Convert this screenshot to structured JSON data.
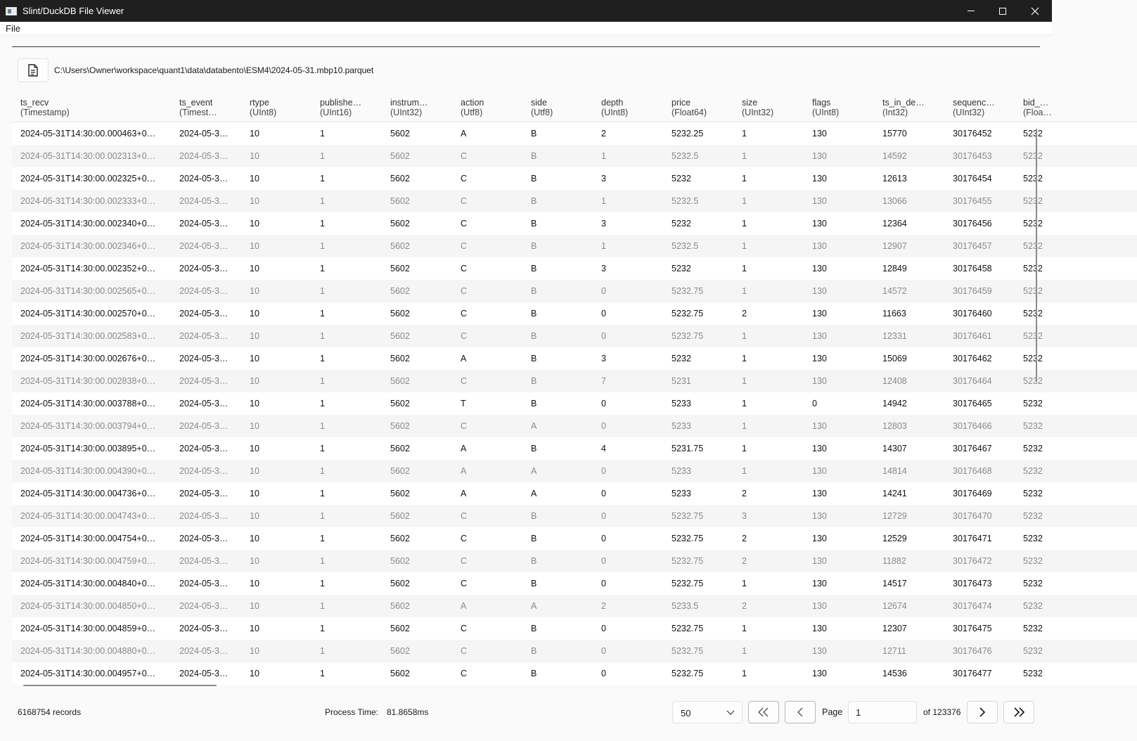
{
  "window": {
    "title": "Slint/DuckDB File Viewer"
  },
  "menu": {
    "file": "File"
  },
  "file": {
    "path": "C:\\Users\\Owner\\workspace\\quant1\\data\\databento\\ESM4\\2024-05-31.mbp10.parquet"
  },
  "table": {
    "columns": [
      {
        "name": "ts_recv",
        "type": "(Timestamp)"
      },
      {
        "name": "ts_event",
        "type": "(Timest…"
      },
      {
        "name": "rtype",
        "type": "(UInt8)"
      },
      {
        "name": "publishe…",
        "type": "(UInt16)"
      },
      {
        "name": "instrum…",
        "type": "(UInt32)"
      },
      {
        "name": "action",
        "type": "(Utf8)"
      },
      {
        "name": "side",
        "type": "(Utf8)"
      },
      {
        "name": "depth",
        "type": "(UInt8)"
      },
      {
        "name": "price",
        "type": "(Float64)"
      },
      {
        "name": "size",
        "type": "(UInt32)"
      },
      {
        "name": "flags",
        "type": "(UInt8)"
      },
      {
        "name": "ts_in_de…",
        "type": "(Int32)"
      },
      {
        "name": "sequenc…",
        "type": "(UInt32)"
      },
      {
        "name": "bid_…",
        "type": "(Floa…"
      }
    ],
    "rows": [
      [
        "2024-05-31T14:30:00.000463+0…",
        "2024-05-3…",
        "10",
        "1",
        "5602",
        "A",
        "B",
        "2",
        "5232.25",
        "1",
        "130",
        "15770",
        "30176452",
        "5232"
      ],
      [
        "2024-05-31T14:30:00.002313+0…",
        "2024-05-3…",
        "10",
        "1",
        "5602",
        "C",
        "B",
        "1",
        "5232.5",
        "1",
        "130",
        "14592",
        "30176453",
        "5232"
      ],
      [
        "2024-05-31T14:30:00.002325+0…",
        "2024-05-3…",
        "10",
        "1",
        "5602",
        "C",
        "B",
        "3",
        "5232",
        "1",
        "130",
        "12613",
        "30176454",
        "5232"
      ],
      [
        "2024-05-31T14:30:00.002333+0…",
        "2024-05-3…",
        "10",
        "1",
        "5602",
        "C",
        "B",
        "1",
        "5232.5",
        "1",
        "130",
        "13066",
        "30176455",
        "5232"
      ],
      [
        "2024-05-31T14:30:00.002340+0…",
        "2024-05-3…",
        "10",
        "1",
        "5602",
        "C",
        "B",
        "3",
        "5232",
        "1",
        "130",
        "12364",
        "30176456",
        "5232"
      ],
      [
        "2024-05-31T14:30:00.002346+0…",
        "2024-05-3…",
        "10",
        "1",
        "5602",
        "C",
        "B",
        "1",
        "5232.5",
        "1",
        "130",
        "12907",
        "30176457",
        "5232"
      ],
      [
        "2024-05-31T14:30:00.002352+0…",
        "2024-05-3…",
        "10",
        "1",
        "5602",
        "C",
        "B",
        "3",
        "5232",
        "1",
        "130",
        "12849",
        "30176458",
        "5232"
      ],
      [
        "2024-05-31T14:30:00.002565+0…",
        "2024-05-3…",
        "10",
        "1",
        "5602",
        "C",
        "B",
        "0",
        "5232.75",
        "1",
        "130",
        "14572",
        "30176459",
        "5232"
      ],
      [
        "2024-05-31T14:30:00.002570+0…",
        "2024-05-3…",
        "10",
        "1",
        "5602",
        "C",
        "B",
        "0",
        "5232.75",
        "2",
        "130",
        "11663",
        "30176460",
        "5232"
      ],
      [
        "2024-05-31T14:30:00.002583+0…",
        "2024-05-3…",
        "10",
        "1",
        "5602",
        "C",
        "B",
        "0",
        "5232.75",
        "1",
        "130",
        "12331",
        "30176461",
        "5232"
      ],
      [
        "2024-05-31T14:30:00.002676+0…",
        "2024-05-3…",
        "10",
        "1",
        "5602",
        "A",
        "B",
        "3",
        "5232",
        "1",
        "130",
        "15069",
        "30176462",
        "5232"
      ],
      [
        "2024-05-31T14:30:00.002838+0…",
        "2024-05-3…",
        "10",
        "1",
        "5602",
        "C",
        "B",
        "7",
        "5231",
        "1",
        "130",
        "12408",
        "30176464",
        "5232"
      ],
      [
        "2024-05-31T14:30:00.003788+0…",
        "2024-05-3…",
        "10",
        "1",
        "5602",
        "T",
        "B",
        "0",
        "5233",
        "1",
        "0",
        "14942",
        "30176465",
        "5232"
      ],
      [
        "2024-05-31T14:30:00.003794+0…",
        "2024-05-3…",
        "10",
        "1",
        "5602",
        "C",
        "A",
        "0",
        "5233",
        "1",
        "130",
        "12803",
        "30176466",
        "5232"
      ],
      [
        "2024-05-31T14:30:00.003895+0…",
        "2024-05-3…",
        "10",
        "1",
        "5602",
        "A",
        "B",
        "4",
        "5231.75",
        "1",
        "130",
        "14307",
        "30176467",
        "5232"
      ],
      [
        "2024-05-31T14:30:00.004390+0…",
        "2024-05-3…",
        "10",
        "1",
        "5602",
        "A",
        "A",
        "0",
        "5233",
        "1",
        "130",
        "14814",
        "30176468",
        "5232"
      ],
      [
        "2024-05-31T14:30:00.004736+0…",
        "2024-05-3…",
        "10",
        "1",
        "5602",
        "A",
        "A",
        "0",
        "5233",
        "2",
        "130",
        "14241",
        "30176469",
        "5232"
      ],
      [
        "2024-05-31T14:30:00.004743+0…",
        "2024-05-3…",
        "10",
        "1",
        "5602",
        "C",
        "B",
        "0",
        "5232.75",
        "3",
        "130",
        "12729",
        "30176470",
        "5232"
      ],
      [
        "2024-05-31T14:30:00.004754+0…",
        "2024-05-3…",
        "10",
        "1",
        "5602",
        "C",
        "B",
        "0",
        "5232.75",
        "2",
        "130",
        "12529",
        "30176471",
        "5232"
      ],
      [
        "2024-05-31T14:30:00.004759+0…",
        "2024-05-3…",
        "10",
        "1",
        "5602",
        "C",
        "B",
        "0",
        "5232.75",
        "2",
        "130",
        "11882",
        "30176472",
        "5232"
      ],
      [
        "2024-05-31T14:30:00.004840+0…",
        "2024-05-3…",
        "10",
        "1",
        "5602",
        "C",
        "B",
        "0",
        "5232.75",
        "1",
        "130",
        "14517",
        "30176473",
        "5232"
      ],
      [
        "2024-05-31T14:30:00.004850+0…",
        "2024-05-3…",
        "10",
        "1",
        "5602",
        "A",
        "A",
        "2",
        "5233.5",
        "2",
        "130",
        "12674",
        "30176474",
        "5232"
      ],
      [
        "2024-05-31T14:30:00.004859+0…",
        "2024-05-3…",
        "10",
        "1",
        "5602",
        "C",
        "B",
        "0",
        "5232.75",
        "1",
        "130",
        "12307",
        "30176475",
        "5232"
      ],
      [
        "2024-05-31T14:30:00.004880+0…",
        "2024-05-3…",
        "10",
        "1",
        "5602",
        "C",
        "B",
        "0",
        "5232.75",
        "1",
        "130",
        "12711",
        "30176476",
        "5232"
      ],
      [
        "2024-05-31T14:30:00.004957+0…",
        "2024-05-3…",
        "10",
        "1",
        "5602",
        "C",
        "B",
        "0",
        "5232.75",
        "1",
        "130",
        "14536",
        "30176477",
        "5232"
      ]
    ]
  },
  "footer": {
    "records": "6168754 records",
    "process_time_label": "Process Time:",
    "process_time_value": "81.8658ms",
    "page_size": "50",
    "page_label": "Page",
    "page_value": "1",
    "page_of": "of 123376"
  },
  "icons": {
    "file_button": "document-icon",
    "page_size_chevron": "chevron-down-icon",
    "first": "double-chevron-left-icon",
    "prev": "chevron-left-icon",
    "next": "chevron-right-icon",
    "last": "double-chevron-right-icon"
  }
}
